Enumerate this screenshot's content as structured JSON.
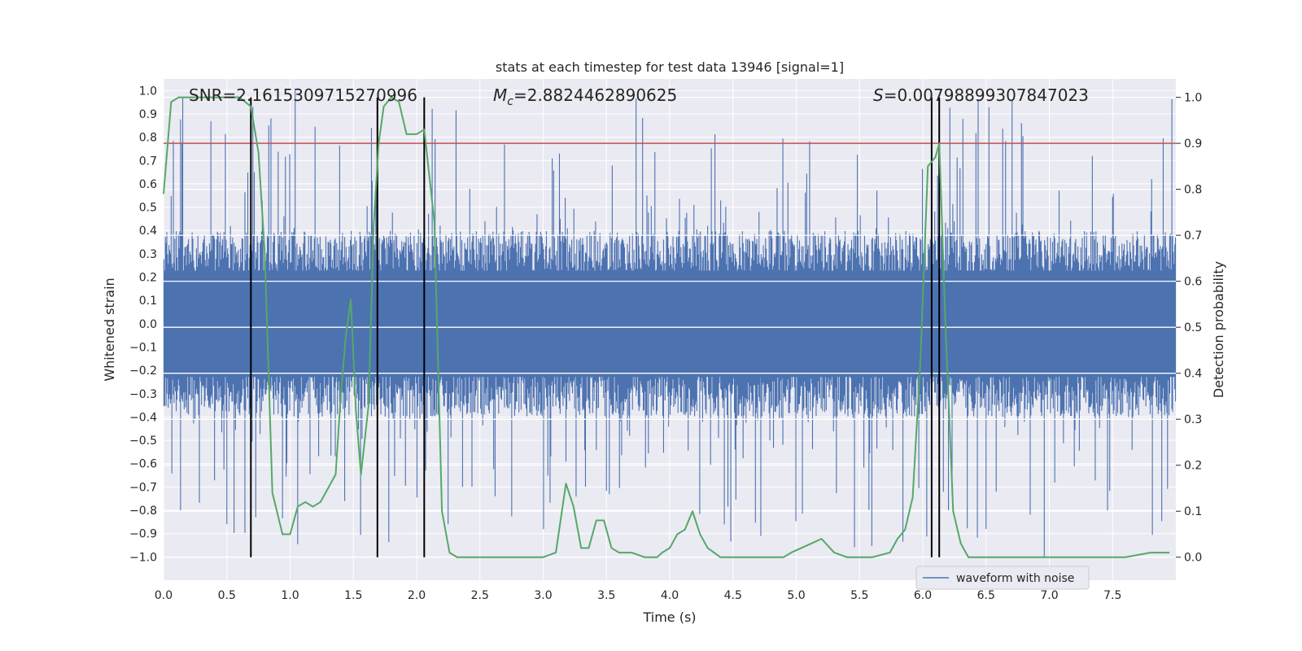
{
  "chart_data": {
    "type": "line",
    "title": "stats at each timestep for test data 13946 [signal=1]",
    "xlabel": "Time (s)",
    "ylabel_left": "Whitened strain",
    "ylabel_right": "Detection probability",
    "xlim": [
      0.0,
      8.0
    ],
    "ylim_left": [
      -1.1,
      1.05
    ],
    "ylim_right": [
      -0.05,
      1.04
    ],
    "x_ticks": [
      "0.0",
      "0.5",
      "1.0",
      "1.5",
      "2.0",
      "2.5",
      "3.0",
      "3.5",
      "4.0",
      "4.5",
      "5.0",
      "5.5",
      "6.0",
      "6.5",
      "7.0",
      "7.5"
    ],
    "y_left_ticks": [
      "1.0",
      "0.9",
      "0.8",
      "0.7",
      "0.6",
      "0.5",
      "0.4",
      "0.3",
      "0.2",
      "0.1",
      "0.0",
      "-0.1",
      "-0.2",
      "-0.3",
      "-0.4",
      "-0.5",
      "-0.6",
      "-0.7",
      "-0.8",
      "-0.9",
      "-1.0"
    ],
    "y_right_ticks": [
      "1.0",
      "0.9",
      "0.8",
      "0.7",
      "0.6",
      "0.5",
      "0.4",
      "0.3",
      "0.2",
      "0.1",
      "0.0"
    ],
    "annotations": {
      "snr": "SNR=2.1615309715270996",
      "mc_symbol": "M",
      "mc_sub": "c",
      "mc_value": "=2.8824462890625",
      "s_symbol": "S",
      "s_value": "=0.00798899307847023"
    },
    "threshold": 0.9,
    "vertical_lines": [
      0.69,
      1.69,
      2.06,
      6.07,
      6.13
    ],
    "legend": {
      "label": "waveform with noise",
      "placement": "lower-right"
    },
    "series": [
      {
        "name": "detection probability",
        "color": "#55a868",
        "x": [
          0.0,
          0.06,
          0.12,
          0.18,
          0.3,
          0.6,
          0.69,
          0.75,
          0.8,
          0.86,
          0.94,
          1.0,
          1.06,
          1.12,
          1.18,
          1.24,
          1.3,
          1.36,
          1.4,
          1.44,
          1.48,
          1.52,
          1.56,
          1.62,
          1.66,
          1.7,
          1.74,
          1.8,
          1.86,
          1.92,
          2.0,
          2.06,
          2.14,
          2.2,
          2.26,
          2.32,
          2.4,
          2.5,
          2.7,
          3.0,
          3.1,
          3.18,
          3.24,
          3.3,
          3.36,
          3.42,
          3.48,
          3.54,
          3.6,
          3.7,
          3.8,
          3.9,
          3.94,
          4.0,
          4.06,
          4.12,
          4.18,
          4.24,
          4.3,
          4.4,
          4.6,
          4.9,
          4.96,
          5.04,
          5.12,
          5.2,
          5.3,
          5.4,
          5.6,
          5.74,
          5.8,
          5.86,
          5.92,
          5.98,
          6.04,
          6.1,
          6.13,
          6.18,
          6.24,
          6.3,
          6.36,
          6.5,
          7.0,
          7.3,
          7.4,
          7.6,
          7.8,
          7.95
        ],
        "y": [
          0.79,
          0.99,
          1.0,
          1.0,
          1.0,
          1.0,
          0.98,
          0.88,
          0.66,
          0.14,
          0.05,
          0.05,
          0.11,
          0.12,
          0.11,
          0.12,
          0.15,
          0.18,
          0.35,
          0.48,
          0.56,
          0.32,
          0.18,
          0.33,
          0.72,
          0.9,
          0.98,
          1.0,
          0.99,
          0.92,
          0.92,
          0.93,
          0.73,
          0.1,
          0.01,
          0.0,
          0.0,
          0.0,
          0.0,
          0.0,
          0.01,
          0.16,
          0.11,
          0.02,
          0.02,
          0.08,
          0.08,
          0.02,
          0.01,
          0.01,
          0.0,
          0.0,
          0.01,
          0.02,
          0.05,
          0.06,
          0.1,
          0.05,
          0.02,
          0.0,
          0.0,
          0.0,
          0.01,
          0.02,
          0.03,
          0.04,
          0.01,
          0.0,
          0.0,
          0.01,
          0.04,
          0.06,
          0.13,
          0.42,
          0.85,
          0.87,
          0.9,
          0.5,
          0.1,
          0.03,
          0.0,
          0.0,
          0.0,
          0.0,
          0.0,
          0.0,
          0.01,
          0.01
        ]
      },
      {
        "name": "waveform with noise",
        "color": "#4c72b0",
        "typical_amplitude": 0.38,
        "max": 1.0,
        "min": -1.0
      }
    ]
  }
}
